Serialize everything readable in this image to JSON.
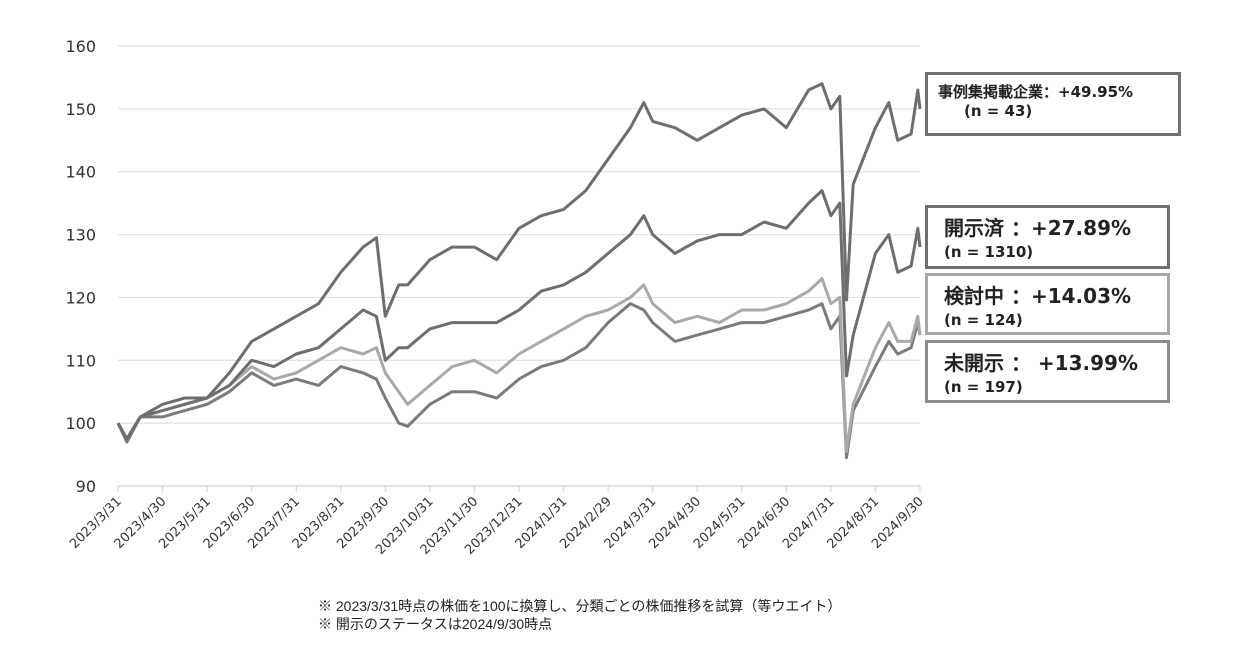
{
  "chart_data": {
    "type": "line",
    "title": "",
    "xlabel": "",
    "ylabel": "",
    "ylim": [
      90,
      160
    ],
    "yticks": [
      "90",
      "100",
      "110",
      "120",
      "130",
      "140",
      "150",
      "160"
    ],
    "grid": true,
    "x_tick_labels": [
      "2023/3/31",
      "2023/4/30",
      "2023/5/31",
      "2023/6/30",
      "2023/7/31",
      "2023/8/31",
      "2023/9/30",
      "2023/10/31",
      "2023/11/30",
      "2023/12/31",
      "2024/1/31",
      "2024/2/29",
      "2024/3/31",
      "2024/4/30",
      "2024/5/31",
      "2024/6/30",
      "2024/7/31",
      "2024/8/31",
      "2024/9/30"
    ],
    "x_unit": "months since 2023/3/31",
    "x": [
      0,
      0.2,
      0.5,
      1,
      1.5,
      2,
      2.5,
      3,
      3.5,
      4,
      4.5,
      5,
      5.5,
      5.8,
      6,
      6.3,
      6.5,
      7,
      7.5,
      8,
      8.5,
      9,
      9.5,
      10,
      10.5,
      11,
      11.5,
      11.8,
      12,
      12.5,
      13,
      13.5,
      14,
      14.5,
      15,
      15.5,
      15.8,
      16,
      16.2,
      16.35,
      16.5,
      17,
      17.3,
      17.5,
      17.8,
      17.95,
      18
    ],
    "series": [
      {
        "name": "未開示",
        "color": "#7b7b7d",
        "values": [
          100,
          97,
          101,
          101,
          102,
          103,
          105,
          108,
          106,
          107,
          106,
          109,
          108,
          107,
          104,
          100,
          99.5,
          103,
          105,
          105,
          104,
          107,
          109,
          110,
          112,
          116,
          119,
          118,
          116,
          113,
          114,
          115,
          116,
          116,
          117,
          118,
          119,
          115,
          117,
          94.5,
          102,
          109,
          113,
          111,
          112,
          116,
          114
        ]
      },
      {
        "name": "検討中",
        "color": "#a9a9a9",
        "values": [
          100,
          97.5,
          101,
          102,
          103,
          104,
          106,
          109,
          107,
          108,
          110,
          112,
          111,
          112,
          108,
          105,
          103,
          106,
          109,
          110,
          108,
          111,
          113,
          115,
          117,
          118,
          120,
          122,
          119,
          116,
          117,
          116,
          118,
          118,
          119,
          121,
          123,
          119,
          120,
          95.5,
          103,
          112,
          116,
          113,
          113,
          117,
          114
        ]
      },
      {
        "name": "開示済",
        "color": "#6e6e70",
        "values": [
          100,
          97.5,
          101,
          102,
          103,
          104,
          106,
          110,
          109,
          111,
          112,
          115,
          118,
          117,
          110,
          112,
          112,
          115,
          116,
          116,
          116,
          118,
          121,
          122,
          124,
          127,
          130,
          133,
          130,
          127,
          129,
          130,
          130,
          132,
          131,
          135,
          137,
          133,
          135,
          107.5,
          114,
          127,
          130,
          124,
          125,
          131,
          128
        ]
      },
      {
        "name": "事例集掲載企業",
        "color": "#6e6e70",
        "values": [
          100,
          97.5,
          101,
          103,
          104,
          104,
          108,
          113,
          115,
          117,
          119,
          124,
          128,
          129.5,
          117,
          122,
          122,
          126,
          128,
          128,
          126,
          131,
          133,
          134,
          137,
          142,
          147,
          151,
          148,
          147,
          145,
          147,
          149,
          150,
          147,
          153,
          154,
          150,
          152,
          119.6,
          138,
          147,
          151,
          145,
          146,
          153,
          150
        ]
      }
    ],
    "legend": [
      {
        "line1": "事例集掲載企業：+49.95%",
        "line2": "(n = 43)",
        "border": "#707070"
      },
      {
        "line1": "開示済 ：+27.89%",
        "line2": "(n = 1310)",
        "border": "#707070"
      },
      {
        "line1": "検討中 ：+14.03%",
        "line2": "(n = 124)",
        "border": "#a9a9a9"
      },
      {
        "line1": "未開示 ： +13.99%",
        "line2": "(n = 197)",
        "border": "#8c8c8c"
      }
    ],
    "legend_placement": "right",
    "footnotes": [
      "※ 2023/3/31時点の株価を100に換算し、分類ごとの株価推移を試算（等ウエイト）",
      "※ 開示のステータスは2024/9/30時点"
    ]
  }
}
